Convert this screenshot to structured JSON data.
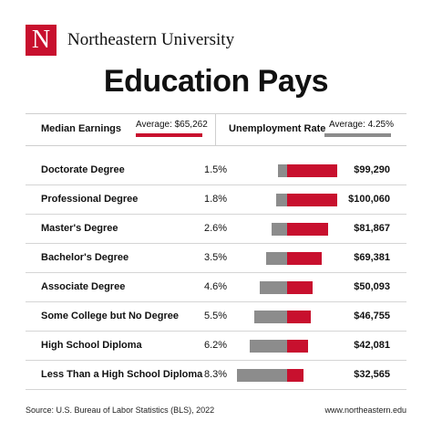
{
  "brand": {
    "logo_letter": "N",
    "name": "Northeastern University",
    "color": "#c8102e"
  },
  "title": "Education Pays",
  "legend": {
    "median_label": "Median Earnings",
    "median_avg": "Average: $65,262",
    "unemployment_label": "Unemployment Rate",
    "unemployment_avg": "Average: 4.25%"
  },
  "rows": [
    {
      "degree": "Doctorate Degree",
      "rate": "1.5%",
      "earnings": "$99,290"
    },
    {
      "degree": "Professional Degree",
      "rate": "1.8%",
      "earnings": "$100,060"
    },
    {
      "degree": "Master's Degree",
      "rate": "2.6%",
      "earnings": "$81,867"
    },
    {
      "degree": "Bachelor's Degree",
      "rate": "3.5%",
      "earnings": "$69,381"
    },
    {
      "degree": "Associate Degree",
      "rate": "4.6%",
      "earnings": "$50,093"
    },
    {
      "degree": "Some College but No Degree",
      "rate": "5.5%",
      "earnings": "$46,755"
    },
    {
      "degree": "High School Diploma",
      "rate": "6.2%",
      "earnings": "$42,081"
    },
    {
      "degree": "Less Than a High School Diploma",
      "rate": "8.3%",
      "earnings": "$32,565"
    }
  ],
  "chart_data": {
    "type": "bar",
    "categories": [
      "Doctorate Degree",
      "Professional Degree",
      "Master's Degree",
      "Bachelor's Degree",
      "Associate Degree",
      "Some College but No Degree",
      "High School Diploma",
      "Less Than a High School Diploma"
    ],
    "series": [
      {
        "name": "Median Earnings",
        "values": [
          99290,
          100060,
          81867,
          69381,
          50093,
          46755,
          42081,
          32565
        ],
        "color": "#c8102e"
      },
      {
        "name": "Unemployment Rate",
        "values": [
          1.5,
          1.8,
          2.6,
          3.5,
          4.6,
          5.5,
          6.2,
          8.3
        ],
        "color": "#8c8c8c"
      }
    ],
    "averages": {
      "Median Earnings": 65262,
      "Unemployment Rate": 4.25
    },
    "title": "Education Pays",
    "orientation": "horizontal",
    "legend": "top"
  },
  "footer": {
    "source": "Source: U.S. Bureau of Labor Statistics (BLS), 2022",
    "url": "www.northeastern.edu"
  }
}
